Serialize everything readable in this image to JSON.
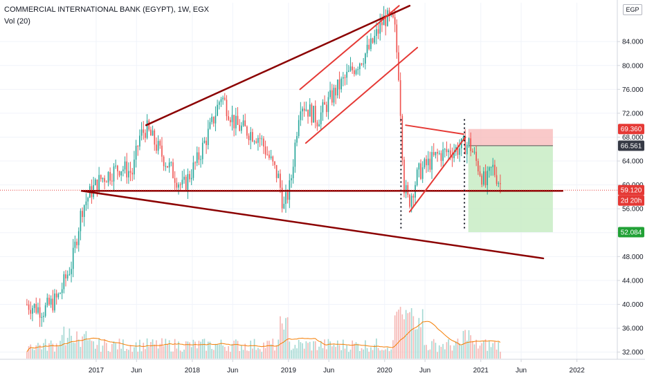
{
  "header": {
    "title": "COMMERCIAL INTERNATIONAL BANK (EGYPT), 1W, EGX",
    "indicator": "Vol (20)",
    "currency": "EGP"
  },
  "colors": {
    "up": "#26a69a",
    "down": "#ef5350",
    "trend_dark": "#8b0000",
    "trend_red": "#e53935",
    "vol_ma": "#f57c00",
    "stop_zone": "#f8bcbc",
    "target_zone": "#c8ecc4"
  },
  "badges": [
    {
      "label": "69.360",
      "color": "#e53935"
    },
    {
      "label": "66.561",
      "color": "#363a45"
    },
    {
      "label": "59.120",
      "color": "#e53935"
    },
    {
      "label": "2d 20h",
      "color": "#e53935"
    },
    {
      "label": "52.084",
      "color": "#21a136"
    }
  ],
  "chart_data": {
    "type": "candlestick",
    "title": "COMMERCIAL INTERNATIONAL BANK (EGYPT), 1W, EGX",
    "y_axis": {
      "side": "right",
      "range": [
        30.8,
        90.5
      ],
      "ticks": [
        32.0,
        36.0,
        40.0,
        44.0,
        48.0,
        52.0,
        56.0,
        60.0,
        64.0,
        68.0,
        72.0,
        76.0,
        80.0,
        84.0
      ]
    },
    "x_axis": {
      "ticks": [
        "2017",
        "Jun",
        "2018",
        "Jun",
        "2019",
        "Jun",
        "2020",
        "Jun",
        "2021",
        "Jun",
        "2022"
      ]
    },
    "keypoints": [
      {
        "t": 2016.28,
        "p": 40
      },
      {
        "t": 2016.45,
        "p": 39
      },
      {
        "t": 2016.6,
        "p": 41
      },
      {
        "t": 2016.75,
        "p": 47
      },
      {
        "t": 2016.85,
        "p": 56
      },
      {
        "t": 2016.95,
        "p": 59
      },
      {
        "t": 2017.05,
        "p": 61
      },
      {
        "t": 2017.25,
        "p": 63
      },
      {
        "t": 2017.38,
        "p": 62
      },
      {
        "t": 2017.45,
        "p": 68
      },
      {
        "t": 2017.52,
        "p": 69.5
      },
      {
        "t": 2017.72,
        "p": 64
      },
      {
        "t": 2017.9,
        "p": 59.5
      },
      {
        "t": 2018.05,
        "p": 64
      },
      {
        "t": 2018.2,
        "p": 70
      },
      {
        "t": 2018.3,
        "p": 75
      },
      {
        "t": 2018.45,
        "p": 70
      },
      {
        "t": 2018.7,
        "p": 68
      },
      {
        "t": 2018.9,
        "p": 61
      },
      {
        "t": 2018.95,
        "p": 56
      },
      {
        "t": 2019.02,
        "p": 60
      },
      {
        "t": 2019.12,
        "p": 74
      },
      {
        "t": 2019.3,
        "p": 71
      },
      {
        "t": 2019.5,
        "p": 76
      },
      {
        "t": 2019.7,
        "p": 80
      },
      {
        "t": 2019.85,
        "p": 83
      },
      {
        "t": 2020.0,
        "p": 88
      },
      {
        "t": 2020.1,
        "p": 87
      },
      {
        "t": 2020.15,
        "p": 78
      },
      {
        "t": 2020.2,
        "p": 60
      },
      {
        "t": 2020.25,
        "p": 57
      },
      {
        "t": 2020.35,
        "p": 62
      },
      {
        "t": 2020.55,
        "p": 65
      },
      {
        "t": 2020.75,
        "p": 66
      },
      {
        "t": 2020.88,
        "p": 67
      },
      {
        "t": 2020.95,
        "p": 64
      },
      {
        "t": 2021.05,
        "p": 60
      },
      {
        "t": 2021.12,
        "p": 63
      },
      {
        "t": 2021.22,
        "p": 59.5
      }
    ],
    "price_lines": [
      {
        "label": "69.360",
        "value": 69.36
      },
      {
        "label": "66.561",
        "value": 66.561
      },
      {
        "label": "59.120",
        "value": 59.12
      },
      {
        "label": "52.084",
        "value": 52.084
      }
    ],
    "trendlines": [
      {
        "from": [
          2017.52,
          70.0
        ],
        "to": [
          2020.26,
          90.0
        ],
        "color": "#8b0000"
      },
      {
        "from": [
          2016.85,
          59.0
        ],
        "to": [
          2021.65,
          47.7
        ],
        "color": "#8b0000"
      },
      {
        "from": [
          2016.85,
          59.0
        ],
        "to": [
          2021.85,
          59.0
        ],
        "color": "#8b0000"
      },
      {
        "from": [
          2019.12,
          76.0
        ],
        "to": [
          2020.15,
          90.0
        ],
        "color": "#e53935"
      },
      {
        "from": [
          2019.18,
          67.0
        ],
        "to": [
          2020.34,
          83.0
        ],
        "color": "#e53935"
      },
      {
        "from": [
          2020.22,
          70.0
        ],
        "to": [
          2020.82,
          68.5
        ],
        "color": "#e53935"
      },
      {
        "from": [
          2020.26,
          55.5
        ],
        "to": [
          2020.84,
          68.0
        ],
        "color": "#e53935"
      }
    ],
    "position": {
      "entry": 59.12,
      "stop": 69.36,
      "target": 52.084,
      "t_start": 2020.87,
      "t_end": 2021.75
    }
  }
}
